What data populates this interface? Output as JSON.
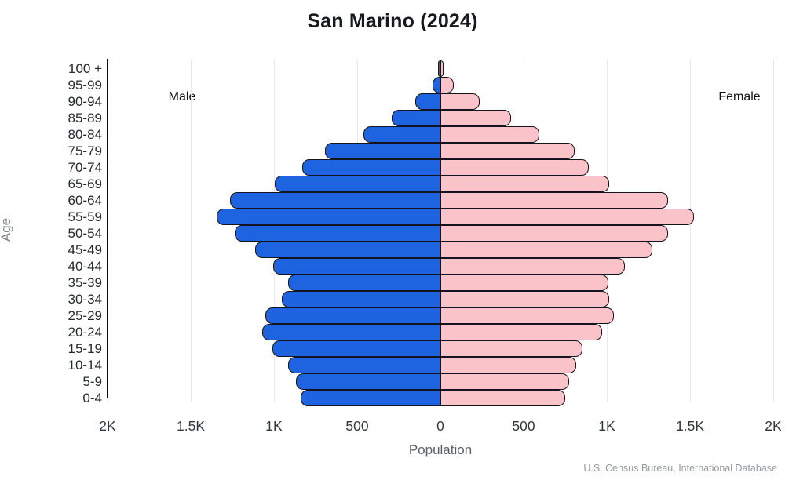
{
  "title": "San Marino (2024)",
  "labels": {
    "male": "Male",
    "female": "Female",
    "age_axis": "Age",
    "x_axis": "Population",
    "source": "U.S. Census Bureau, International Database"
  },
  "colors": {
    "male_fill": "#1E64E1",
    "female_fill": "#F9C3C9",
    "bar_border": "#14141F",
    "grid": "#E7E8EA",
    "axis_line": "#0B0B0E"
  },
  "chart_data": {
    "type": "bar",
    "subtype": "population-pyramid",
    "title": "San Marino (2024)",
    "xlabel": "Population",
    "ylabel": "Age",
    "x_max_per_side": 2000,
    "x_ticks": [
      "2K",
      "1.5K",
      "1K",
      "500",
      "0",
      "500",
      "1K",
      "1.5K",
      "2K"
    ],
    "grid": true,
    "age_groups": [
      "100 +",
      "95-99",
      "90-94",
      "85-89",
      "80-84",
      "75-79",
      "70-74",
      "65-69",
      "60-64",
      "55-59",
      "50-54",
      "45-49",
      "40-44",
      "35-39",
      "30-34",
      "25-29",
      "20-24",
      "15-19",
      "10-14",
      "5-9",
      "0-4"
    ],
    "series": [
      {
        "name": "Male",
        "side": "left",
        "values": [
          6,
          48,
          149,
          292,
          460,
          692,
          830,
          995,
          1266,
          1343,
          1235,
          1113,
          1004,
          916,
          951,
          1050,
          1073,
          1010,
          916,
          870,
          838
        ]
      },
      {
        "name": "Female",
        "side": "right",
        "values": [
          20,
          79,
          238,
          426,
          592,
          806,
          890,
          1012,
          1366,
          1522,
          1370,
          1272,
          1107,
          1010,
          1016,
          1041,
          974,
          856,
          817,
          774,
          749
        ]
      }
    ]
  }
}
